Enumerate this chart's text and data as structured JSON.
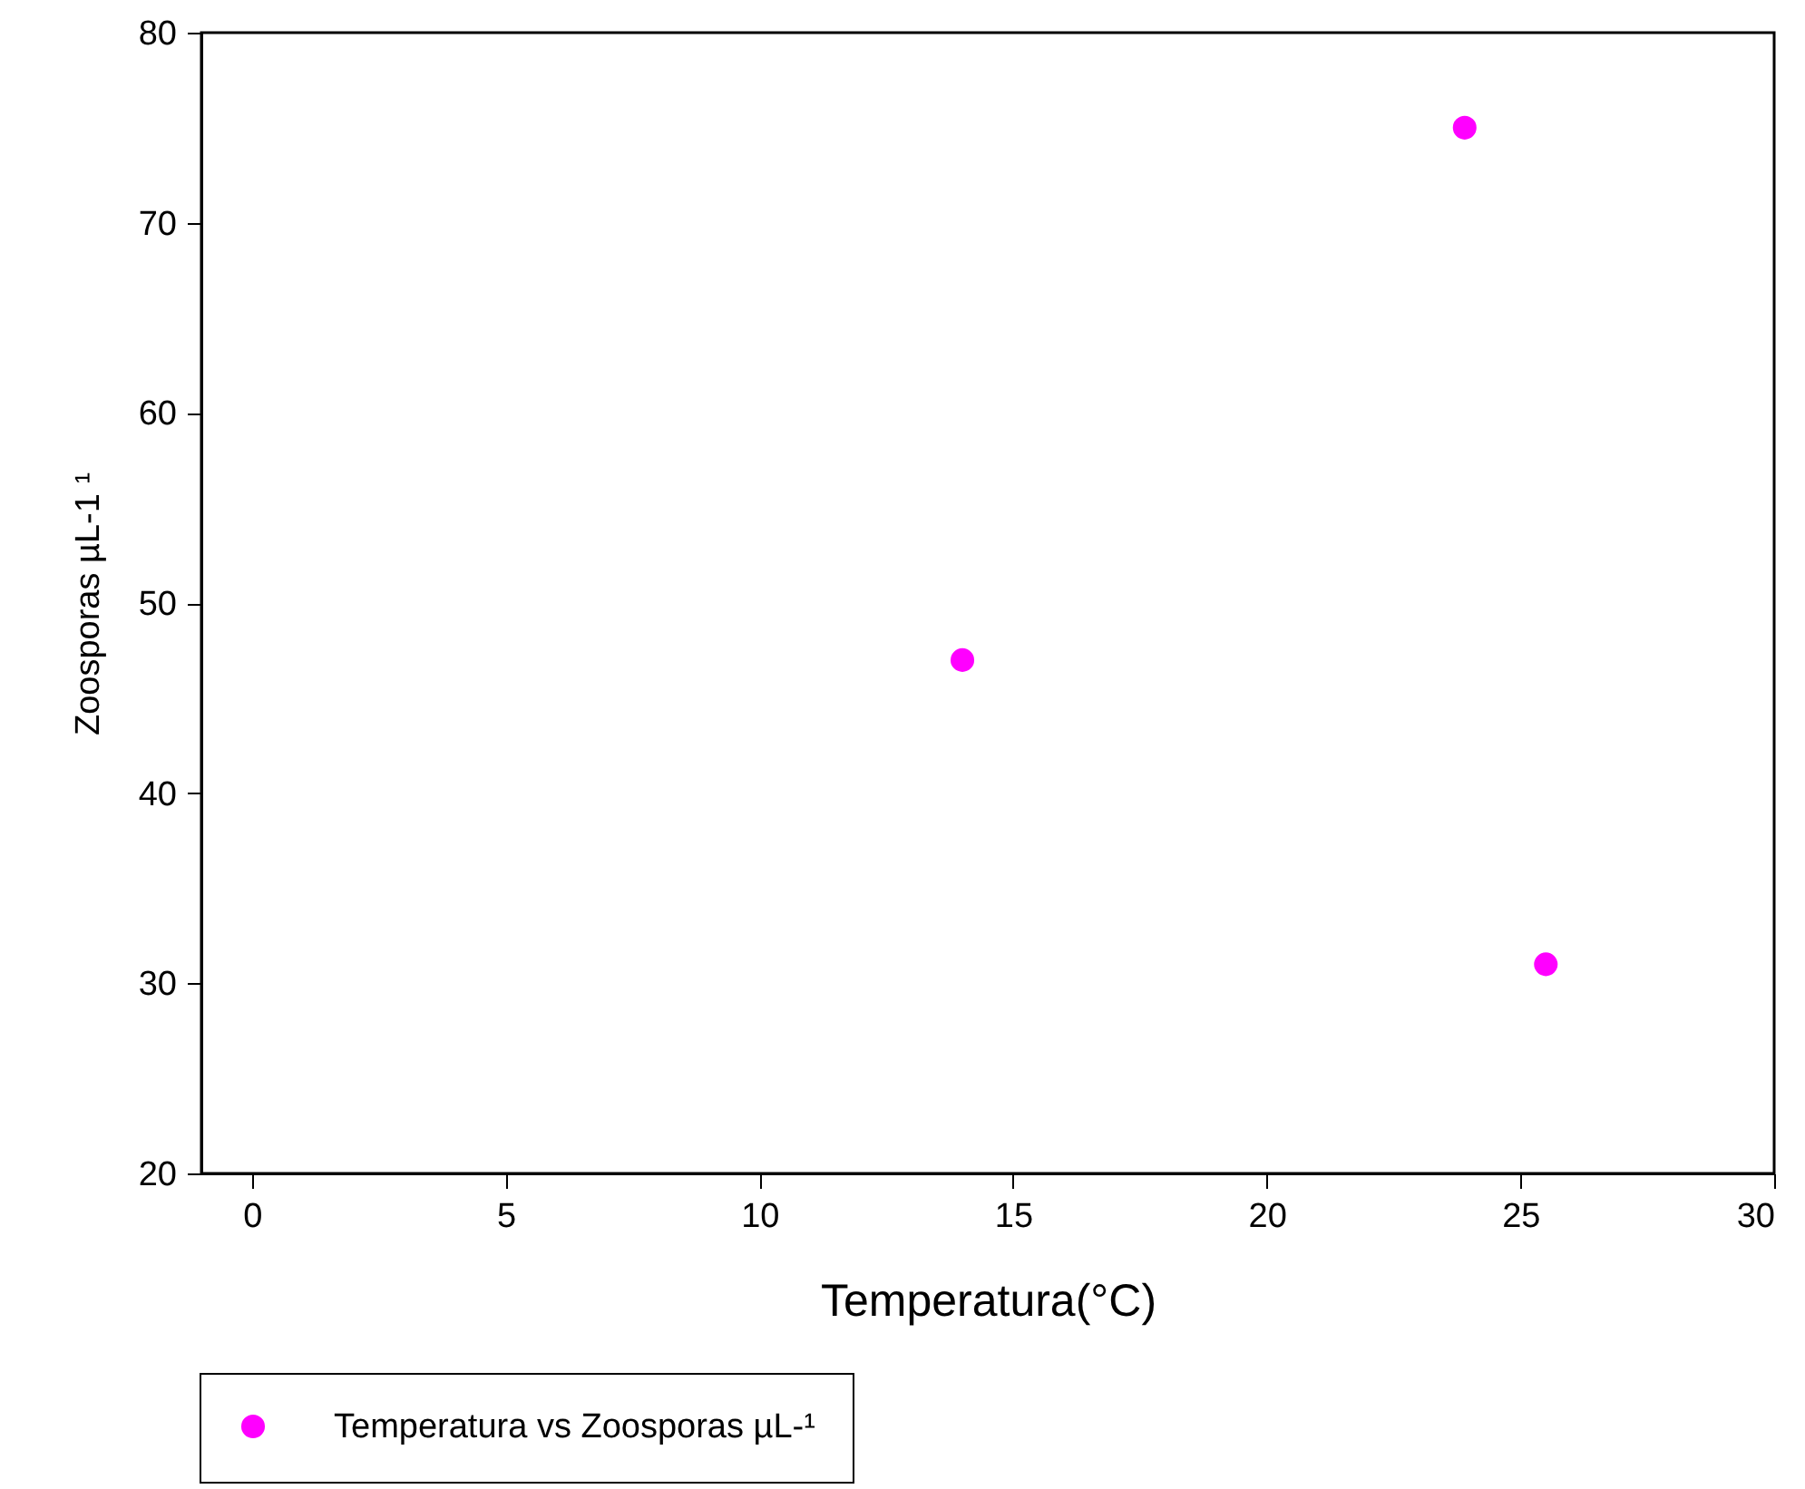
{
  "chart_data": {
    "type": "scatter",
    "xlabel": "Temperatura(°C)",
    "ylabel": "Zoosporas µL-1 ¹",
    "x": [
      14,
      23.9,
      25.5
    ],
    "series": [
      {
        "name": "Temperatura vs Zoosporas µL-¹",
        "color": "#ff00ff",
        "values": [
          47,
          75,
          31
        ]
      }
    ],
    "xlim": [
      -1,
      30
    ],
    "xticks": [
      0,
      5,
      10,
      15,
      20,
      25,
      30
    ],
    "ylim": [
      20,
      80
    ],
    "yticks": [
      20,
      30,
      40,
      50,
      60,
      70,
      80
    ],
    "grid": false,
    "legend": "bottom left",
    "marker": "circle"
  }
}
